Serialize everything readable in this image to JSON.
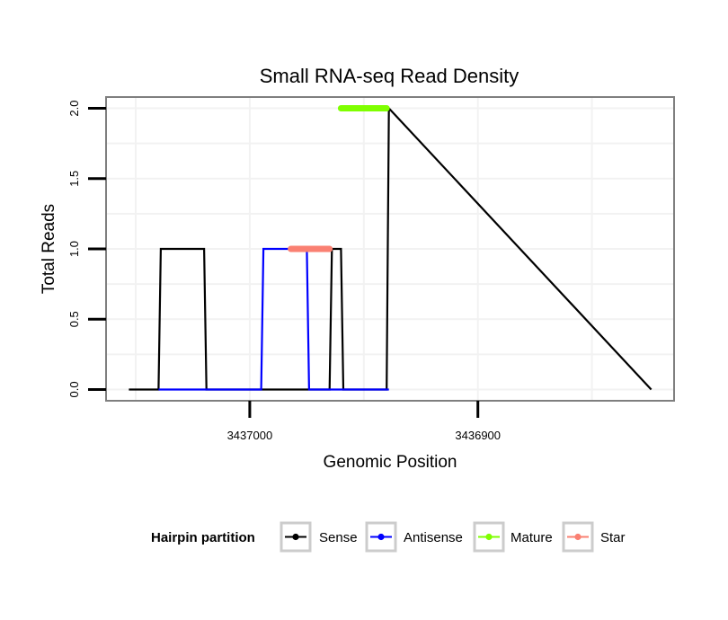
{
  "chart_data": {
    "type": "line",
    "title": "Small RNA-seq Read Density",
    "xlabel": "Genomic Position",
    "ylabel": "Total Reads",
    "x_reversed": true,
    "xlim": [
      3437063,
      3436814
    ],
    "ylim": [
      -0.08,
      2.08
    ],
    "x_ticks": [
      3437000,
      3436900
    ],
    "x_tick_labels": [
      "3437000",
      "3436900"
    ],
    "y_ticks": [
      0,
      0.5,
      1,
      1.5,
      2
    ],
    "y_tick_labels": [
      "0.0",
      "0.5",
      "1.0",
      "1.5",
      "2.0"
    ],
    "grid": true,
    "legend": {
      "title": "Hairpin partition",
      "placement": "bottom",
      "items": [
        {
          "name": "Sense",
          "color": "#000000"
        },
        {
          "name": "Antisense",
          "color": "#0000ff"
        },
        {
          "name": "Mature",
          "color": "#7fff00"
        },
        {
          "name": "Star",
          "color": "#fa8072"
        }
      ]
    },
    "series": [
      {
        "name": "Sense",
        "color": "#000000",
        "x": [
          3437053,
          3437040,
          3437039,
          3437020,
          3437019,
          3436983,
          3436982,
          3436965,
          3436964,
          3436960,
          3436959,
          3436940,
          3436939,
          3436824
        ],
        "y": [
          0,
          0,
          1,
          1,
          0,
          0,
          0,
          0,
          1,
          1,
          0,
          0,
          2,
          0
        ]
      },
      {
        "name": "Antisense",
        "color": "#0000ff",
        "x": [
          3437040,
          3436995,
          3436994,
          3436975,
          3436974,
          3436939
        ],
        "y": [
          0,
          0,
          1,
          1,
          0,
          0
        ]
      },
      {
        "name": "Mature",
        "color": "#7fff00",
        "x": [
          3436960,
          3436940
        ],
        "y": [
          2,
          2
        ]
      },
      {
        "name": "Star",
        "color": "#fa8072",
        "x": [
          3436982,
          3436965
        ],
        "y": [
          1,
          1
        ]
      }
    ]
  }
}
